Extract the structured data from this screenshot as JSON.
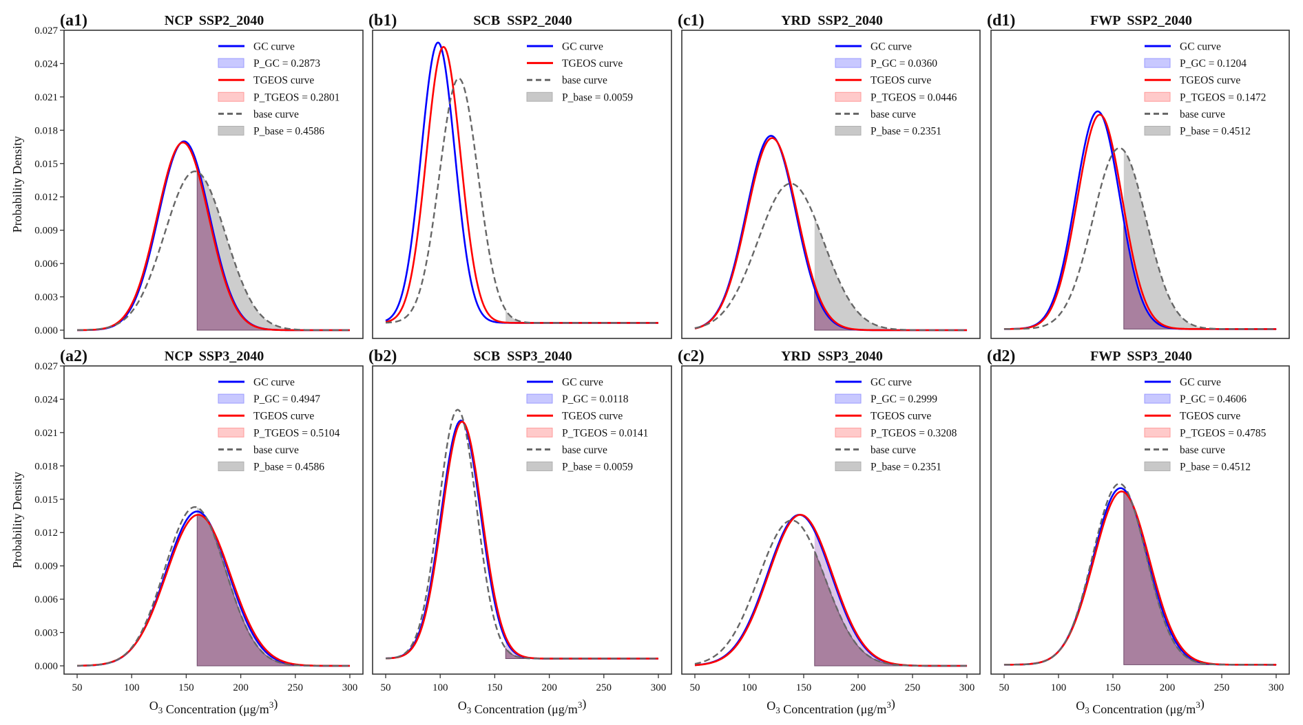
{
  "figure": {
    "ylabel": "Probability Density",
    "xlabel_prefix": "O",
    "xlabel_sub": "3",
    "xlabel_mid": " Concentration (μg/m",
    "xlabel_sup": "3",
    "xlabel_suffix": ")"
  },
  "chart_data": [
    {
      "type": "line",
      "panel": "(a1)",
      "title": "NCP  SSP2_2040",
      "xlabel": "O3 Concentration (μg/m3)",
      "ylabel": "Probability Density",
      "xlim": [
        38,
        312
      ],
      "ylim": [
        0,
        0.027
      ],
      "xticks": [
        50,
        100,
        150,
        200,
        250,
        300
      ],
      "yticks": [
        "0.000",
        "0.003",
        "0.006",
        "0.009",
        "0.012",
        "0.015",
        "0.018",
        "0.021",
        "0.024",
        "0.027"
      ],
      "show_xticks": false,
      "show_yticks": true,
      "threshold": 160,
      "floor": 0,
      "series": [
        {
          "name": "GC curve",
          "peak_x": 148,
          "peak_y": 0.017,
          "shade_label": "P_GC = 0.2873"
        },
        {
          "name": "TGEOS curve",
          "peak_x": 147,
          "peak_y": 0.0169,
          "shade_label": "P_TGEOS = 0.2801"
        },
        {
          "name": "base curve",
          "peak_x": 158,
          "peak_y": 0.0143,
          "shade_label": "P_base = 0.4586"
        }
      ],
      "legend": [
        "GC curve",
        "P_GC = 0.2873",
        "TGEOS curve",
        "P_TGEOS = 0.2801",
        "base curve",
        "P_base = 0.4586"
      ],
      "legend_position": "upper-right"
    },
    {
      "type": "line",
      "panel": "(b1)",
      "title": "SCB  SSP2_2040",
      "xlabel": "O3 Concentration (μg/m3)",
      "ylabel": "",
      "xlim": [
        38,
        312
      ],
      "ylim": [
        -0.0009,
        0.0272
      ],
      "xticks": [
        50,
        100,
        150,
        200,
        250,
        300
      ],
      "yticks": [],
      "show_xticks": false,
      "show_yticks": false,
      "threshold": 160,
      "floor": 0.0004,
      "series": [
        {
          "name": "GC curve",
          "peak_x": 98,
          "peak_y": 0.0258,
          "shade_label": null
        },
        {
          "name": "TGEOS curve",
          "peak_x": 103,
          "peak_y": 0.0254,
          "shade_label": null
        },
        {
          "name": "base curve",
          "peak_x": 117,
          "peak_y": 0.0225,
          "shade_label": "P_base = 0.0059"
        }
      ],
      "legend": [
        "GC curve",
        "TGEOS curve",
        "base curve",
        "P_base = 0.0059"
      ],
      "legend_position": "upper-right"
    },
    {
      "type": "line",
      "panel": "(c1)",
      "title": "YRD  SSP2_2040",
      "xlabel": "O3 Concentration (μg/m3)",
      "ylabel": "",
      "xlim": [
        38,
        312
      ],
      "ylim": [
        0,
        0.027
      ],
      "xticks": [
        50,
        100,
        150,
        200,
        250,
        300
      ],
      "yticks": [],
      "show_xticks": false,
      "show_yticks": false,
      "threshold": 160,
      "floor": 0,
      "series": [
        {
          "name": "GC curve",
          "peak_x": 120,
          "peak_y": 0.0175,
          "shade_label": "P_GC = 0.0360"
        },
        {
          "name": "TGEOS curve",
          "peak_x": 121,
          "peak_y": 0.0173,
          "shade_label": "P_TGEOS = 0.0446"
        },
        {
          "name": "base curve",
          "peak_x": 138,
          "peak_y": 0.0132,
          "shade_label": "P_base = 0.2351"
        }
      ],
      "legend": [
        "GC curve",
        "P_GC = 0.0360",
        "TGEOS curve",
        "P_TGEOS = 0.0446",
        "base curve",
        "P_base = 0.2351"
      ],
      "legend_position": "upper-right"
    },
    {
      "type": "line",
      "panel": "(d1)",
      "title": "FWP  SSP2_2040",
      "xlabel": "O3 Concentration (μg/m3)",
      "ylabel": "",
      "xlim": [
        38,
        312
      ],
      "ylim": [
        0,
        0.027
      ],
      "xticks": [
        50,
        100,
        150,
        200,
        250,
        300
      ],
      "yticks": [],
      "show_xticks": false,
      "show_yticks": false,
      "threshold": 160,
      "floor": 0.0001,
      "series": [
        {
          "name": "GC curve",
          "peak_x": 136,
          "peak_y": 0.0196,
          "shade_label": "P_GC = 0.1204"
        },
        {
          "name": "TGEOS curve",
          "peak_x": 138,
          "peak_y": 0.0193,
          "shade_label": "P_TGEOS = 0.1472"
        },
        {
          "name": "base curve",
          "peak_x": 156,
          "peak_y": 0.0163,
          "shade_label": "P_base = 0.4512"
        }
      ],
      "legend": [
        "GC curve",
        "P_GC = 0.1204",
        "TGEOS curve",
        "P_TGEOS = 0.1472",
        "base curve",
        "P_base = 0.4512"
      ],
      "legend_position": "upper-right"
    },
    {
      "type": "line",
      "panel": "(a2)",
      "title": "NCP  SSP3_2040",
      "xlabel": "O3 Concentration (μg/m3)",
      "ylabel": "Probability Density",
      "xlim": [
        38,
        312
      ],
      "ylim": [
        0,
        0.027
      ],
      "xticks": [
        50,
        100,
        150,
        200,
        250,
        300
      ],
      "yticks": [
        "0.000",
        "0.003",
        "0.006",
        "0.009",
        "0.012",
        "0.015",
        "0.018",
        "0.021",
        "0.024",
        "0.027"
      ],
      "show_xticks": true,
      "show_yticks": true,
      "threshold": 160,
      "floor": 0,
      "series": [
        {
          "name": "GC curve",
          "peak_x": 160,
          "peak_y": 0.0139,
          "shade_label": "P_GC = 0.4947"
        },
        {
          "name": "TGEOS curve",
          "peak_x": 161,
          "peak_y": 0.0136,
          "shade_label": "P_TGEOS = 0.5104"
        },
        {
          "name": "base curve",
          "peak_x": 158,
          "peak_y": 0.0143,
          "shade_label": "P_base = 0.4586"
        }
      ],
      "legend": [
        "GC curve",
        "P_GC = 0.4947",
        "TGEOS curve",
        "P_TGEOS = 0.5104",
        "base curve",
        "P_base = 0.4586"
      ],
      "legend_position": "upper-right"
    },
    {
      "type": "line",
      "panel": "(b2)",
      "title": "SCB  SSP3_2040",
      "xlabel": "O3 Concentration (μg/m3)",
      "ylabel": "",
      "xlim": [
        38,
        312
      ],
      "ylim": [
        -0.0009,
        0.0272
      ],
      "xticks": [
        50,
        100,
        150,
        200,
        250,
        300
      ],
      "yticks": [],
      "show_xticks": true,
      "show_yticks": false,
      "threshold": 160,
      "floor": 0.0004,
      "series": [
        {
          "name": "GC curve",
          "peak_x": 119,
          "peak_y": 0.0219,
          "shade_label": "P_GC = 0.0118"
        },
        {
          "name": "TGEOS curve",
          "peak_x": 120,
          "peak_y": 0.0218,
          "shade_label": "P_TGEOS = 0.0141"
        },
        {
          "name": "base curve",
          "peak_x": 116,
          "peak_y": 0.0229,
          "shade_label": "P_base = 0.0059"
        }
      ],
      "legend": [
        "GC curve",
        "P_GC = 0.0118",
        "TGEOS curve",
        "P_TGEOS = 0.0141",
        "base curve",
        "P_base = 0.0059"
      ],
      "legend_position": "upper-right"
    },
    {
      "type": "line",
      "panel": "(c2)",
      "title": "YRD  SSP3_2040",
      "xlabel": "O3 Concentration (μg/m3)",
      "ylabel": "",
      "xlim": [
        38,
        312
      ],
      "ylim": [
        0,
        0.027
      ],
      "xticks": [
        50,
        100,
        150,
        200,
        250,
        300
      ],
      "yticks": [],
      "show_xticks": true,
      "show_yticks": false,
      "threshold": 160,
      "floor": 0,
      "series": [
        {
          "name": "GC curve",
          "peak_x": 146,
          "peak_y": 0.0136,
          "shade_label": "P_GC = 0.2999"
        },
        {
          "name": "TGEOS curve",
          "peak_x": 147,
          "peak_y": 0.0136,
          "shade_label": "P_TGEOS = 0.3208"
        },
        {
          "name": "base curve",
          "peak_x": 139,
          "peak_y": 0.0131,
          "shade_label": "P_base = 0.2351"
        }
      ],
      "legend": [
        "GC curve",
        "P_GC = 0.2999",
        "TGEOS curve",
        "P_TGEOS = 0.3208",
        "base curve",
        "P_base = 0.2351"
      ],
      "legend_position": "upper-right"
    },
    {
      "type": "line",
      "panel": "(d2)",
      "title": "FWP  SSP3_2040",
      "xlabel": "O3 Concentration (μg/m3)",
      "ylabel": "",
      "xlim": [
        38,
        312
      ],
      "ylim": [
        0,
        0.027
      ],
      "xticks": [
        50,
        100,
        150,
        200,
        250,
        300
      ],
      "yticks": [],
      "show_xticks": true,
      "show_yticks": false,
      "threshold": 160,
      "floor": 0.0001,
      "series": [
        {
          "name": "GC curve",
          "peak_x": 157,
          "peak_y": 0.0159,
          "shade_label": "P_GC = 0.4606"
        },
        {
          "name": "TGEOS curve",
          "peak_x": 158,
          "peak_y": 0.0156,
          "shade_label": "P_TGEOS = 0.4785"
        },
        {
          "name": "base curve",
          "peak_x": 156,
          "peak_y": 0.0163,
          "shade_label": "P_base = 0.4512"
        }
      ],
      "legend": [
        "GC curve",
        "P_GC = 0.4606",
        "TGEOS curve",
        "P_TGEOS = 0.4785",
        "base curve",
        "P_base = 0.4512"
      ],
      "legend_position": "upper-right"
    }
  ],
  "colors": {
    "gc": "#0000ff",
    "tgeos": "#ff0000",
    "base": "#666666",
    "gc_fill": "#c8c8ff",
    "tgeos_fill": "#ffcaca",
    "base_fill": "#c8c8c8",
    "overlap_fill": "#a9809f",
    "axis": "#333333"
  }
}
